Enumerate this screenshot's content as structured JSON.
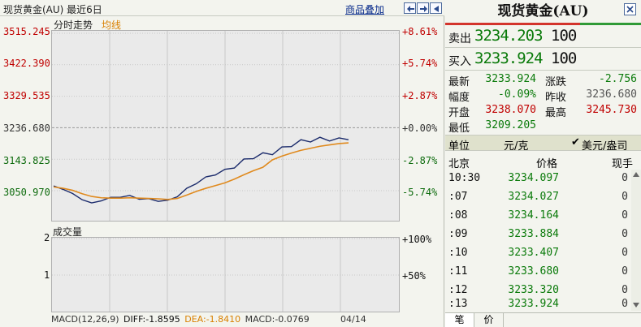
{
  "header": {
    "title": "现货黄金(AU) 最近6日",
    "overlay_link": "商品叠加"
  },
  "chart": {
    "mode_label": "分时走势",
    "avg_label": "均线",
    "vol_label": "成交量",
    "left_axis": [
      "3515.245",
      "3422.390",
      "3329.535",
      "3236.680",
      "3143.825",
      "3050.970"
    ],
    "right_axis": [
      "+8.61%",
      "+5.74%",
      "+2.87%",
      "+0.00%",
      "-2.87%",
      "-5.74%"
    ],
    "vol_left_axis": [
      "2",
      "1"
    ],
    "vol_right_axis": [
      "+100%",
      "+50%"
    ],
    "macd_label": "MACD(12,26,9)",
    "diff_label": "DIFF:-1.8595",
    "dea_label": "DEA:-1.8410",
    "macd_value": "MACD:-0.0769",
    "date_label": "04/14"
  },
  "chart_data": {
    "type": "line",
    "title": "",
    "xlabel": "",
    "ylabel": "",
    "ylim": [
      3000,
      3540
    ],
    "series": [
      {
        "name": "",
        "color": "#1a2a6b",
        "values": [
          3065,
          3055,
          3042,
          3025,
          3014,
          3022,
          3030,
          3033,
          3035,
          3028,
          3025,
          3022,
          3020,
          3036,
          3055,
          3075,
          3088,
          3101,
          3110,
          3122,
          3140,
          3150,
          3158,
          3162,
          3175,
          3186,
          3196,
          3200,
          3203,
          3203,
          3201,
          3207
        ]
      },
      {
        "name": "均线",
        "color": "#e08a1e",
        "values": [
          3062,
          3058,
          3052,
          3042,
          3034,
          3030,
          3029,
          3029,
          3030,
          3029,
          3028,
          3027,
          3025,
          3028,
          3038,
          3049,
          3058,
          3066,
          3074,
          3085,
          3098,
          3110,
          3120,
          3142,
          3153,
          3162,
          3170,
          3176,
          3182,
          3186,
          3190,
          3192
        ]
      }
    ]
  },
  "quote": {
    "title": "现货黄金(AU)",
    "ask_label": "卖出",
    "ask_price": "3234.203",
    "ask_qty": "100",
    "bid_label": "买入",
    "bid_price": "3233.924",
    "bid_qty": "100",
    "stats": [
      {
        "k1": "最新",
        "v1": "3233.924",
        "k2": "涨跌",
        "v2": "-2.756"
      },
      {
        "k1": "幅度",
        "v1": "-0.09%",
        "k2": "昨收",
        "v2": "3236.680"
      },
      {
        "k1": "开盘",
        "v1": "3238.070",
        "k2": "最高",
        "v2": "3245.730"
      },
      {
        "k1": "最低",
        "v1": "3209.205",
        "k2": "",
        "v2": ""
      }
    ],
    "unit_key": "单位",
    "unit_val": "元/克",
    "unit_check": "✔",
    "unit_alt": "美元/盎司",
    "tick_headers": [
      "北京",
      "价格",
      "现手"
    ],
    "ticks": [
      {
        "t": "10:30",
        "p": "3234.097",
        "v": "0"
      },
      {
        "t": ":07",
        "p": "3234.027",
        "v": "0"
      },
      {
        "t": ":08",
        "p": "3234.164",
        "v": "0"
      },
      {
        "t": ":09",
        "p": "3233.884",
        "v": "0"
      },
      {
        "t": ":10",
        "p": "3233.407",
        "v": "0"
      },
      {
        "t": ":11",
        "p": "3233.680",
        "v": "0"
      },
      {
        "t": ":12",
        "p": "3233.320",
        "v": "0"
      },
      {
        "t": ":13",
        "p": "3233.924",
        "v": "0"
      }
    ],
    "tabs": [
      "笔",
      "价"
    ]
  },
  "colors": {
    "price_line": "#1a2a6b",
    "avg_line": "#e08a1e",
    "up": "#c00000",
    "down": "#0a7a0a"
  }
}
